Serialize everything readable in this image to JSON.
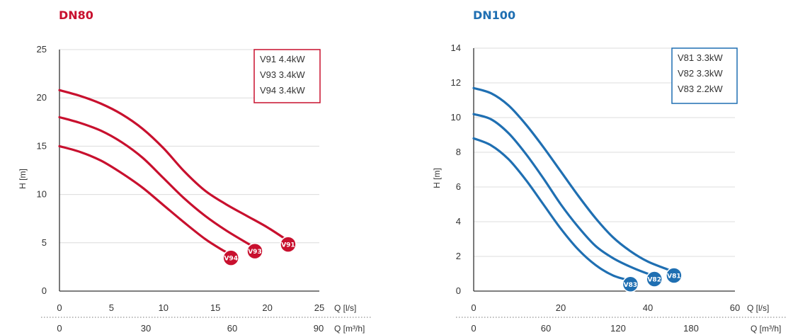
{
  "chart_data": [
    {
      "type": "line",
      "title": "DN80",
      "color": "#c8102e",
      "ylabel": "H [m]",
      "xlabel_primary": "Q [l/s]",
      "xlabel_secondary": "Q [m³/h]",
      "xlim": [
        0,
        25
      ],
      "ylim": [
        0,
        25
      ],
      "y_ticks": [
        "0",
        "5",
        "10",
        "15",
        "20",
        "25"
      ],
      "x_ticks_primary": [
        "0",
        "5",
        "10",
        "15",
        "20",
        "25"
      ],
      "x_ticks_secondary": [
        "0",
        "30",
        "60",
        "90"
      ],
      "grid": true,
      "legend_position": "top-right",
      "series": [
        {
          "name": "V91 4.4kW",
          "badge": "V91",
          "x": [
            0,
            2,
            4,
            6,
            8,
            10,
            12,
            14,
            16,
            18,
            20,
            22
          ],
          "y": [
            20.8,
            20.2,
            19.4,
            18.3,
            16.8,
            14.8,
            12.4,
            10.4,
            9.0,
            7.8,
            6.6,
            5.2
          ]
        },
        {
          "name": "V93 3.4kW",
          "badge": "V93",
          "x": [
            0,
            2,
            4,
            6,
            8,
            10,
            12,
            14,
            16,
            18,
            18.8
          ],
          "y": [
            18.0,
            17.4,
            16.6,
            15.4,
            13.8,
            11.7,
            9.6,
            7.8,
            6.3,
            5.0,
            4.5
          ]
        },
        {
          "name": "V94 3.4kW",
          "badge": "V94",
          "x": [
            0,
            2,
            4,
            6,
            8,
            10,
            12,
            14,
            15.6,
            16.5
          ],
          "y": [
            15.0,
            14.4,
            13.5,
            12.2,
            10.7,
            8.9,
            7.1,
            5.4,
            4.3,
            3.8
          ]
        }
      ]
    },
    {
      "type": "line",
      "title": "DN100",
      "color": "#1f6fb2",
      "ylabel": "H [m]",
      "xlabel_primary": "Q [l/s]",
      "xlabel_secondary": "Q [m³/h]",
      "xlim": [
        0,
        60
      ],
      "ylim": [
        0,
        14
      ],
      "y_ticks": [
        "0",
        "2",
        "4",
        "6",
        "8",
        "10",
        "12",
        "14"
      ],
      "x_ticks_primary": [
        "0",
        "20",
        "40",
        "60"
      ],
      "x_ticks_secondary": [
        "0",
        "60",
        "120",
        "180"
      ],
      "grid": true,
      "legend_position": "top-right",
      "series": [
        {
          "name": "V81 3.3kW",
          "badge": "V81",
          "x": [
            0,
            4,
            8,
            12,
            16,
            20,
            24,
            28,
            32,
            36,
            40,
            44,
            46
          ],
          "y": [
            11.7,
            11.4,
            10.7,
            9.6,
            8.3,
            6.9,
            5.5,
            4.2,
            3.1,
            2.3,
            1.7,
            1.3,
            1.1
          ]
        },
        {
          "name": "V82 3.3kW",
          "badge": "V82",
          "x": [
            0,
            4,
            8,
            12,
            16,
            20,
            24,
            28,
            32,
            36,
            40,
            41.5
          ],
          "y": [
            10.2,
            9.9,
            9.1,
            7.9,
            6.5,
            5.0,
            3.7,
            2.6,
            1.9,
            1.4,
            1.0,
            0.9
          ]
        },
        {
          "name": "V83 2.2kW",
          "badge": "V83",
          "x": [
            0,
            4,
            8,
            12,
            16,
            20,
            24,
            28,
            32,
            36
          ],
          "y": [
            8.8,
            8.4,
            7.6,
            6.4,
            5.0,
            3.6,
            2.4,
            1.5,
            0.9,
            0.6
          ]
        }
      ]
    }
  ]
}
